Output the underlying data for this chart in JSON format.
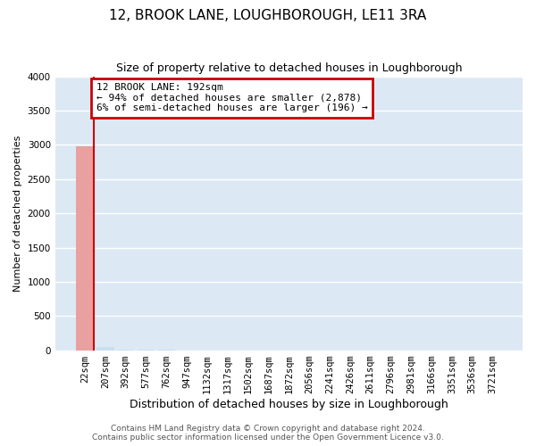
{
  "title": "12, BROOK LANE, LOUGHBOROUGH, LE11 3RA",
  "subtitle": "Size of property relative to detached houses in Loughborough",
  "xlabel": "Distribution of detached houses by size in Loughborough",
  "ylabel": "Number of detached properties",
  "categories": [
    "22sqm",
    "207sqm",
    "392sqm",
    "577sqm",
    "762sqm",
    "947sqm",
    "1132sqm",
    "1317sqm",
    "1502sqm",
    "1687sqm",
    "1872sqm",
    "2056sqm",
    "2241sqm",
    "2426sqm",
    "2611sqm",
    "2796sqm",
    "2981sqm",
    "3166sqm",
    "3351sqm",
    "3536sqm",
    "3721sqm"
  ],
  "values": [
    2975,
    50,
    15,
    8,
    6,
    4,
    3,
    3,
    2,
    2,
    2,
    2,
    2,
    1,
    1,
    1,
    1,
    1,
    1,
    1,
    1
  ],
  "bar_color_normal": "#c8dff0",
  "bar_color_highlight": "#e8a0a0",
  "highlight_index": 0,
  "ylim": [
    0,
    4000
  ],
  "yticks": [
    0,
    500,
    1000,
    1500,
    2000,
    2500,
    3000,
    3500,
    4000
  ],
  "annotation_text": "12 BROOK LANE: 192sqm\n← 94% of detached houses are smaller (2,878)\n6% of semi-detached houses are larger (196) →",
  "annotation_box_edgecolor": "#cc0000",
  "annotation_box_facecolor": "#ffffff",
  "property_line_color": "#cc0000",
  "footer_line1": "Contains HM Land Registry data © Crown copyright and database right 2024.",
  "footer_line2": "Contains public sector information licensed under the Open Government Licence v3.0.",
  "fig_background_color": "#ffffff",
  "plot_background_color": "#dce9f5",
  "grid_color": "#ffffff",
  "title_fontsize": 11,
  "subtitle_fontsize": 9,
  "tick_fontsize": 7.5,
  "ylabel_fontsize": 8,
  "xlabel_fontsize": 9,
  "annotation_fontsize": 8,
  "footer_fontsize": 6.5
}
